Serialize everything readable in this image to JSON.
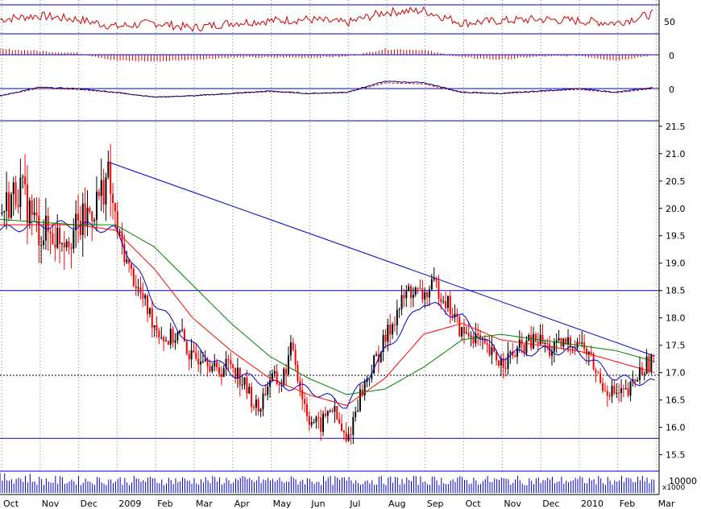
{
  "colors": {
    "price_up": "#000000",
    "price_down": "#ff0000",
    "trendline": "#0000cc",
    "ma_fast": "#0000cc",
    "ma_mid": "#ff0000",
    "ma_slow": "#008000",
    "rsi": "#cc0000",
    "macd_hist": "#cc0000",
    "volume": "#0000cc",
    "grid": "#808080"
  },
  "chart_data": {
    "type": "candlestick",
    "title": "",
    "x_labels": [
      "Oct",
      "Nov",
      "Dec",
      "2009",
      "Feb",
      "Mar",
      "Apr",
      "May",
      "Jun",
      "Jul",
      "Aug",
      "Sep",
      "Oct",
      "Nov",
      "Dec",
      "2010",
      "Feb",
      "Mar"
    ],
    "price_axis": {
      "ylim": [
        15.2,
        21.6
      ],
      "ticks": [
        "21.5",
        "21.0",
        "20.5",
        "20.0",
        "19.5",
        "19.0",
        "18.5",
        "18.0",
        "17.5",
        "17.0",
        "16.5",
        "16.0",
        "15.5"
      ]
    },
    "horizontal_lines": {
      "resistance": 18.5,
      "support": 15.8,
      "dashed": 16.95
    },
    "trendline": {
      "from": [
        2.8,
        20.85
      ],
      "to": [
        17.0,
        17.3
      ]
    },
    "price_path": [
      [
        0.0,
        19.9
      ],
      [
        0.5,
        20.4
      ],
      [
        1.0,
        19.6
      ],
      [
        1.5,
        19.5
      ],
      [
        2.0,
        19.6
      ],
      [
        2.5,
        20.1
      ],
      [
        2.8,
        20.6
      ],
      [
        3.0,
        19.7
      ],
      [
        3.3,
        19.0
      ],
      [
        3.6,
        18.5
      ],
      [
        4.0,
        17.9
      ],
      [
        4.3,
        17.6
      ],
      [
        4.7,
        17.7
      ],
      [
        5.0,
        17.2
      ],
      [
        5.3,
        17.4
      ],
      [
        5.6,
        17.0
      ],
      [
        6.0,
        17.2
      ],
      [
        6.4,
        16.7
      ],
      [
        6.7,
        16.3
      ],
      [
        7.0,
        16.9
      ],
      [
        7.3,
        16.8
      ],
      [
        7.6,
        17.5
      ],
      [
        7.8,
        16.7
      ],
      [
        8.0,
        16.2
      ],
      [
        8.3,
        16.0
      ],
      [
        8.6,
        16.4
      ],
      [
        9.0,
        15.7
      ],
      [
        9.3,
        16.5
      ],
      [
        9.6,
        17.0
      ],
      [
        10.0,
        17.6
      ],
      [
        10.3,
        18.1
      ],
      [
        10.6,
        18.5
      ],
      [
        11.0,
        18.4
      ],
      [
        11.3,
        18.6
      ],
      [
        11.6,
        18.3
      ],
      [
        12.0,
        17.7
      ],
      [
        12.3,
        17.7
      ],
      [
        12.6,
        17.4
      ],
      [
        13.0,
        17.2
      ],
      [
        13.3,
        17.3
      ],
      [
        13.6,
        17.5
      ],
      [
        14.0,
        17.6
      ],
      [
        14.3,
        17.4
      ],
      [
        14.6,
        17.5
      ],
      [
        15.0,
        17.6
      ],
      [
        15.3,
        17.3
      ],
      [
        15.6,
        16.8
      ],
      [
        16.0,
        16.6
      ],
      [
        16.3,
        16.6
      ],
      [
        16.6,
        17.0
      ],
      [
        17.0,
        17.3
      ]
    ],
    "moving_averages": [
      {
        "color_key": "ma_fast",
        "points": [
          [
            0,
            19.6
          ],
          [
            1,
            19.7
          ],
          [
            2,
            19.7
          ],
          [
            3,
            19.6
          ],
          [
            4,
            18.3
          ],
          [
            5,
            17.5
          ],
          [
            6,
            17.0
          ],
          [
            7,
            16.8
          ],
          [
            8,
            16.7
          ],
          [
            9,
            16.4
          ],
          [
            10,
            17.4
          ],
          [
            11,
            18.3
          ],
          [
            12,
            18.0
          ],
          [
            13,
            17.3
          ],
          [
            14,
            17.4
          ],
          [
            15,
            17.4
          ],
          [
            16,
            16.9
          ],
          [
            17,
            16.8
          ]
        ]
      },
      {
        "color_key": "ma_mid",
        "points": [
          [
            0,
            19.7
          ],
          [
            2,
            19.7
          ],
          [
            3,
            19.6
          ],
          [
            4,
            18.9
          ],
          [
            5,
            18.0
          ],
          [
            6,
            17.4
          ],
          [
            7,
            16.9
          ],
          [
            8,
            16.6
          ],
          [
            9,
            16.4
          ],
          [
            10,
            16.9
          ],
          [
            11,
            17.7
          ],
          [
            12,
            17.9
          ],
          [
            13,
            17.6
          ],
          [
            14,
            17.5
          ],
          [
            15,
            17.4
          ],
          [
            16,
            17.2
          ],
          [
            17,
            17.0
          ]
        ]
      },
      {
        "color_key": "ma_slow",
        "points": [
          [
            0,
            19.8
          ],
          [
            2,
            19.7
          ],
          [
            3,
            19.7
          ],
          [
            4,
            19.3
          ],
          [
            5,
            18.6
          ],
          [
            6,
            17.9
          ],
          [
            7,
            17.3
          ],
          [
            8,
            16.9
          ],
          [
            9,
            16.6
          ],
          [
            10,
            16.7
          ],
          [
            11,
            17.1
          ],
          [
            12,
            17.6
          ],
          [
            13,
            17.7
          ],
          [
            14,
            17.6
          ],
          [
            15,
            17.5
          ],
          [
            16,
            17.4
          ],
          [
            17,
            17.2
          ]
        ]
      }
    ],
    "rsi": {
      "ticks": [
        "50"
      ],
      "upper": 70,
      "lower": 30,
      "points": [
        [
          0,
          50
        ],
        [
          1,
          55
        ],
        [
          2,
          50
        ],
        [
          3,
          40
        ],
        [
          4,
          45
        ],
        [
          5,
          38
        ],
        [
          6,
          45
        ],
        [
          7,
          48
        ],
        [
          8,
          50
        ],
        [
          9,
          45
        ],
        [
          10,
          60
        ],
        [
          11,
          62
        ],
        [
          12,
          45
        ],
        [
          13,
          48
        ],
        [
          14,
          50
        ],
        [
          15,
          48
        ],
        [
          16,
          45
        ],
        [
          17,
          58
        ]
      ]
    },
    "macd_histogram": {
      "ticks": [
        "0"
      ],
      "points": [
        [
          0,
          0.6
        ],
        [
          1,
          0.4
        ],
        [
          2,
          0.2
        ],
        [
          3,
          -0.6
        ],
        [
          4,
          -0.7
        ],
        [
          5,
          -0.5
        ],
        [
          6,
          -0.3
        ],
        [
          7,
          -0.3
        ],
        [
          8,
          -0.3
        ],
        [
          9,
          -0.2
        ],
        [
          10,
          0.6
        ],
        [
          11,
          0.5
        ],
        [
          12,
          -0.3
        ],
        [
          13,
          -0.5
        ],
        [
          14,
          -0.2
        ],
        [
          15,
          -0.1
        ],
        [
          16,
          -0.6
        ],
        [
          17,
          0.0
        ]
      ]
    },
    "macd_lines": {
      "ticks": [
        "0"
      ],
      "points": [
        [
          0,
          -0.6
        ],
        [
          1,
          0.1
        ],
        [
          2,
          0.0
        ],
        [
          3,
          -0.3
        ],
        [
          4,
          -0.7
        ],
        [
          5,
          -0.6
        ],
        [
          6,
          -0.4
        ],
        [
          7,
          -0.2
        ],
        [
          8,
          -0.4
        ],
        [
          9,
          -0.3
        ],
        [
          10,
          0.6
        ],
        [
          11,
          0.5
        ],
        [
          12,
          -0.3
        ],
        [
          13,
          -0.4
        ],
        [
          14,
          -0.2
        ],
        [
          15,
          0.0
        ],
        [
          16,
          -0.3
        ],
        [
          17,
          0.1
        ]
      ]
    },
    "volume": {
      "ticks": [
        "10000"
      ],
      "unit": "x1000",
      "max": 14000,
      "level": 0.7
    }
  }
}
